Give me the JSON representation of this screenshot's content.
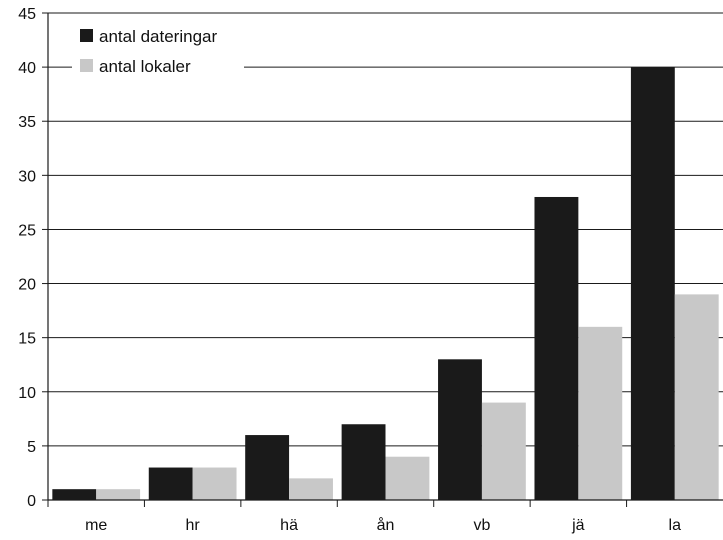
{
  "chart_data": {
    "type": "bar",
    "categories": [
      "me",
      "hr",
      "hä",
      "ån",
      "vb",
      "jä",
      "la"
    ],
    "series": [
      {
        "name": "antal dateringar",
        "color": "#1a1a1a",
        "values": [
          1,
          3,
          6,
          7,
          13,
          28,
          40
        ]
      },
      {
        "name": "antal lokaler",
        "color": "#c8c8c8",
        "values": [
          1,
          3,
          2,
          4,
          9,
          16,
          19
        ]
      }
    ],
    "title": "",
    "xlabel": "",
    "ylabel": "",
    "ylim": [
      0,
      45
    ],
    "yticks": [
      0,
      5,
      10,
      15,
      20,
      25,
      30,
      35,
      40,
      45
    ],
    "grid": true,
    "legend": "top-left"
  }
}
